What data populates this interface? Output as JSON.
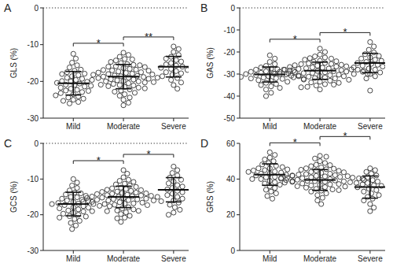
{
  "chart_data": [
    {
      "type": "strip",
      "title": "A",
      "y_label": "GLS (%)",
      "categories": [
        "Mild",
        "Moderate",
        "Severe"
      ],
      "ylim": [
        -30,
        0
      ],
      "yticks": [
        -30,
        -20,
        -10,
        0
      ],
      "reference_line": 0,
      "points": [
        [
          -12.5,
          -13.8,
          -14.9,
          -15.6,
          -16.2,
          -16.8,
          -17.1,
          -17.5,
          -17.9,
          -18.3,
          -18.6,
          -19.0,
          -19.3,
          -19.6,
          -19.9,
          -20.1,
          -20.4,
          -20.6,
          -20.9,
          -21.2,
          -21.4,
          -21.7,
          -22.0,
          -22.3,
          -22.6,
          -22.9,
          -23.2,
          -23.5,
          -23.8,
          -24.1,
          -24.4,
          -24.7,
          -25.0,
          -25.3,
          -25.6,
          -26.0,
          -20.0,
          -21.0,
          -18.0,
          -22.5
        ],
        [
          -12.2,
          -12.8,
          -13.3,
          -13.9,
          -14.3,
          -14.7,
          -15.0,
          -15.3,
          -15.6,
          -15.9,
          -16.1,
          -16.4,
          -16.6,
          -16.9,
          -17.1,
          -17.3,
          -17.5,
          -17.7,
          -17.9,
          -18.1,
          -18.2,
          -18.4,
          -18.5,
          -18.7,
          -18.8,
          -19.0,
          -19.1,
          -19.3,
          -19.4,
          -19.6,
          -19.7,
          -19.9,
          -20.0,
          -20.2,
          -20.3,
          -20.5,
          -20.7,
          -20.9,
          -21.1,
          -21.3,
          -21.5,
          -21.7,
          -21.9,
          -22.2,
          -22.5,
          -22.8,
          -23.1,
          -23.5,
          -23.9,
          -24.4,
          -25.0,
          -25.8,
          -26.5,
          -17.0,
          -18.0,
          -19.0,
          -16.0,
          -20.0,
          -18.6,
          -17.6,
          -19.5,
          -15.5,
          -21.0,
          -14.0,
          -16.8
        ],
        [
          -10.5,
          -11.2,
          -12.0,
          -12.8,
          -13.3,
          -13.8,
          -14.2,
          -14.6,
          -15.0,
          -15.4,
          -15.7,
          -16.0,
          -16.3,
          -16.6,
          -16.9,
          -17.2,
          -17.5,
          -17.8,
          -18.2,
          -18.6,
          -19.1,
          -19.6,
          -20.3,
          -21.0,
          -22.0
        ]
      ],
      "means": [
        -20.5,
        -18.7,
        -16.0
      ],
      "sd": [
        3.2,
        3.3,
        2.8
      ],
      "annotations": [
        {
          "groups": [
            0,
            1
          ],
          "label": "*"
        },
        {
          "groups": [
            1,
            2
          ],
          "label": "**"
        }
      ]
    },
    {
      "type": "strip",
      "title": "B",
      "y_label": "GAS (%)",
      "categories": [
        "Mild",
        "Moderate",
        "Severe"
      ],
      "ylim": [
        -50,
        0
      ],
      "yticks": [
        -50,
        -40,
        -30,
        -20,
        -10,
        0
      ],
      "reference_line": 0,
      "points": [
        [
          -21.5,
          -23.0,
          -24.5,
          -25.5,
          -26.3,
          -27.0,
          -27.5,
          -28.0,
          -28.4,
          -28.8,
          -29.1,
          -29.4,
          -29.7,
          -30.0,
          -30.2,
          -30.5,
          -30.8,
          -31.0,
          -31.3,
          -31.6,
          -31.9,
          -32.2,
          -32.5,
          -32.8,
          -33.1,
          -33.5,
          -34.0,
          -34.5,
          -35.0,
          -35.6,
          -36.3,
          -37.0,
          -38.5,
          -40.0,
          -29.0,
          -30.0,
          -31.0,
          -28.0,
          -32.0,
          -27.8
        ],
        [
          -18.5,
          -20.0,
          -21.2,
          -22.0,
          -22.8,
          -23.5,
          -24.0,
          -24.5,
          -25.0,
          -25.4,
          -25.8,
          -26.2,
          -26.5,
          -26.8,
          -27.1,
          -27.4,
          -27.7,
          -28.0,
          -28.2,
          -28.5,
          -28.7,
          -29.0,
          -29.2,
          -29.5,
          -29.7,
          -30.0,
          -30.3,
          -30.6,
          -30.9,
          -31.2,
          -31.5,
          -31.8,
          -32.2,
          -32.6,
          -33.0,
          -33.5,
          -34.0,
          -34.6,
          -35.2,
          -36.0,
          -37.0,
          -27.0,
          -28.0,
          -29.0,
          -30.0,
          -26.0,
          -31.0,
          -25.5,
          -32.0,
          -24.2,
          -33.8,
          -27.5,
          -28.6,
          -29.6,
          -23.0,
          -34.8,
          -30.5,
          -26.6,
          -31.6,
          -27.9,
          -29.9,
          -22.5,
          -35.8,
          -28.9,
          -25.2
        ],
        [
          -15.5,
          -17.5,
          -19.0,
          -20.2,
          -21.0,
          -21.8,
          -22.5,
          -23.0,
          -23.5,
          -24.0,
          -24.5,
          -25.0,
          -25.4,
          -25.8,
          -26.2,
          -26.6,
          -27.0,
          -27.5,
          -28.0,
          -28.6,
          -29.3,
          -30.0,
          -31.0,
          -32.0,
          -37.5
        ]
      ],
      "means": [
        -30.2,
        -28.5,
        -25.0
      ],
      "sd": [
        3.4,
        3.9,
        4.4
      ],
      "annotations": [
        {
          "groups": [
            0,
            1
          ],
          "label": "*"
        },
        {
          "groups": [
            1,
            2
          ],
          "label": "*"
        }
      ]
    },
    {
      "type": "strip",
      "title": "C",
      "y_label": "GCS (%)",
      "categories": [
        "Mild",
        "Moderate",
        "Severe"
      ],
      "ylim": [
        -30,
        0
      ],
      "yticks": [
        -30,
        -20,
        -10,
        0
      ],
      "reference_line": 0,
      "points": [
        [
          -10.0,
          -11.0,
          -11.8,
          -12.5,
          -13.2,
          -13.8,
          -14.3,
          -14.7,
          -15.1,
          -15.5,
          -15.8,
          -16.1,
          -16.4,
          -16.7,
          -17.0,
          -17.3,
          -17.6,
          -17.9,
          -18.2,
          -18.5,
          -18.8,
          -19.1,
          -19.4,
          -19.7,
          -20.0,
          -20.4,
          -20.8,
          -21.2,
          -21.7,
          -22.3,
          -23.0,
          -24.0,
          -16.0,
          -17.0,
          -18.0,
          -15.0,
          -19.0,
          -14.0,
          -20.5,
          -16.9
        ],
        [
          -7.5,
          -8.5,
          -9.5,
          -10.2,
          -10.8,
          -11.3,
          -11.8,
          -12.2,
          -12.6,
          -13.0,
          -13.3,
          -13.6,
          -13.9,
          -14.2,
          -14.4,
          -14.6,
          -14.8,
          -15.0,
          -15.2,
          -15.4,
          -15.6,
          -15.8,
          -16.0,
          -16.2,
          -16.4,
          -16.6,
          -16.8,
          -17.0,
          -17.3,
          -17.6,
          -17.9,
          -18.2,
          -18.5,
          -18.9,
          -19.3,
          -19.8,
          -20.3,
          -21.0,
          -22.0,
          -14.0,
          -15.0,
          -16.0,
          -13.5,
          -14.5,
          -15.5,
          -16.5,
          -12.8,
          -17.5,
          -13.8,
          -14.9,
          -15.9,
          -11.5,
          -18.8,
          -12.4,
          -16.9,
          -15.3,
          -14.1,
          -17.2,
          -13.1,
          -19.0,
          -15.7,
          -10.5,
          -16.3,
          -14.7,
          -20.8
        ],
        [
          -6.5,
          -7.5,
          -8.3,
          -9.0,
          -9.6,
          -10.2,
          -10.7,
          -11.2,
          -11.7,
          -12.1,
          -12.5,
          -12.9,
          -13.3,
          -13.7,
          -14.1,
          -14.5,
          -15.0,
          -15.5,
          -16.0,
          -16.6,
          -17.2,
          -17.9,
          -18.6,
          -19.4,
          -20.0
        ]
      ],
      "means": [
        -17.0,
        -15.0,
        -13.0
      ],
      "sd": [
        3.3,
        3.0,
        3.4
      ],
      "annotations": [
        {
          "groups": [
            0,
            1
          ],
          "label": "*"
        },
        {
          "groups": [
            1,
            2
          ],
          "label": "*"
        }
      ]
    },
    {
      "type": "strip",
      "title": "D",
      "y_label": "GRS (%)",
      "categories": [
        "Mild",
        "Moderate",
        "Severe"
      ],
      "ylim": [
        0,
        60
      ],
      "yticks": [
        0,
        20,
        40,
        60
      ],
      "points": [
        [
          29,
          30.5,
          32,
          33,
          34,
          35,
          36,
          36.8,
          37.5,
          38.2,
          38.8,
          39.4,
          40,
          40.6,
          41.2,
          41.8,
          42.4,
          43,
          43.6,
          44.2,
          44.8,
          45.4,
          46,
          46.7,
          47.4,
          48.2,
          49,
          50,
          51,
          52,
          53.5,
          55,
          41,
          43,
          42,
          44,
          39,
          45,
          40,
          46
        ],
        [
          26,
          28,
          29.5,
          31,
          32,
          33,
          33.8,
          34.5,
          35.2,
          35.8,
          36.4,
          37,
          37.5,
          38,
          38.4,
          38.8,
          39.2,
          39.6,
          40,
          40.4,
          40.8,
          41.2,
          41.6,
          42,
          42.5,
          43,
          43.5,
          44,
          44.6,
          45.2,
          45.8,
          46.5,
          47.2,
          48,
          49,
          50,
          51.5,
          52.5,
          53,
          38.5,
          39.5,
          40.5,
          41.5,
          37.8,
          42.8,
          36.8,
          43.8,
          35.5,
          44.8,
          38.2,
          39.8,
          40.2,
          41.8,
          34.2,
          46,
          37.2,
          42.2,
          39,
          40.7,
          36,
          45.5,
          38.7,
          41,
          33.5,
          47.8
        ],
        [
          22,
          24,
          26,
          28,
          29,
          30,
          31,
          32,
          33,
          33.8,
          34.6,
          35.4,
          36.2,
          37,
          37.8,
          38.6,
          39.4,
          40.2,
          41,
          42,
          43,
          44,
          45,
          46,
          36.5
        ]
      ],
      "means": [
        42.5,
        39.5,
        35.5
      ],
      "sd": [
        6.0,
        5.8,
        6.2
      ],
      "annotations": [
        {
          "groups": [
            0,
            1
          ],
          "label": "*"
        },
        {
          "groups": [
            1,
            2
          ],
          "label": "*"
        }
      ]
    }
  ]
}
